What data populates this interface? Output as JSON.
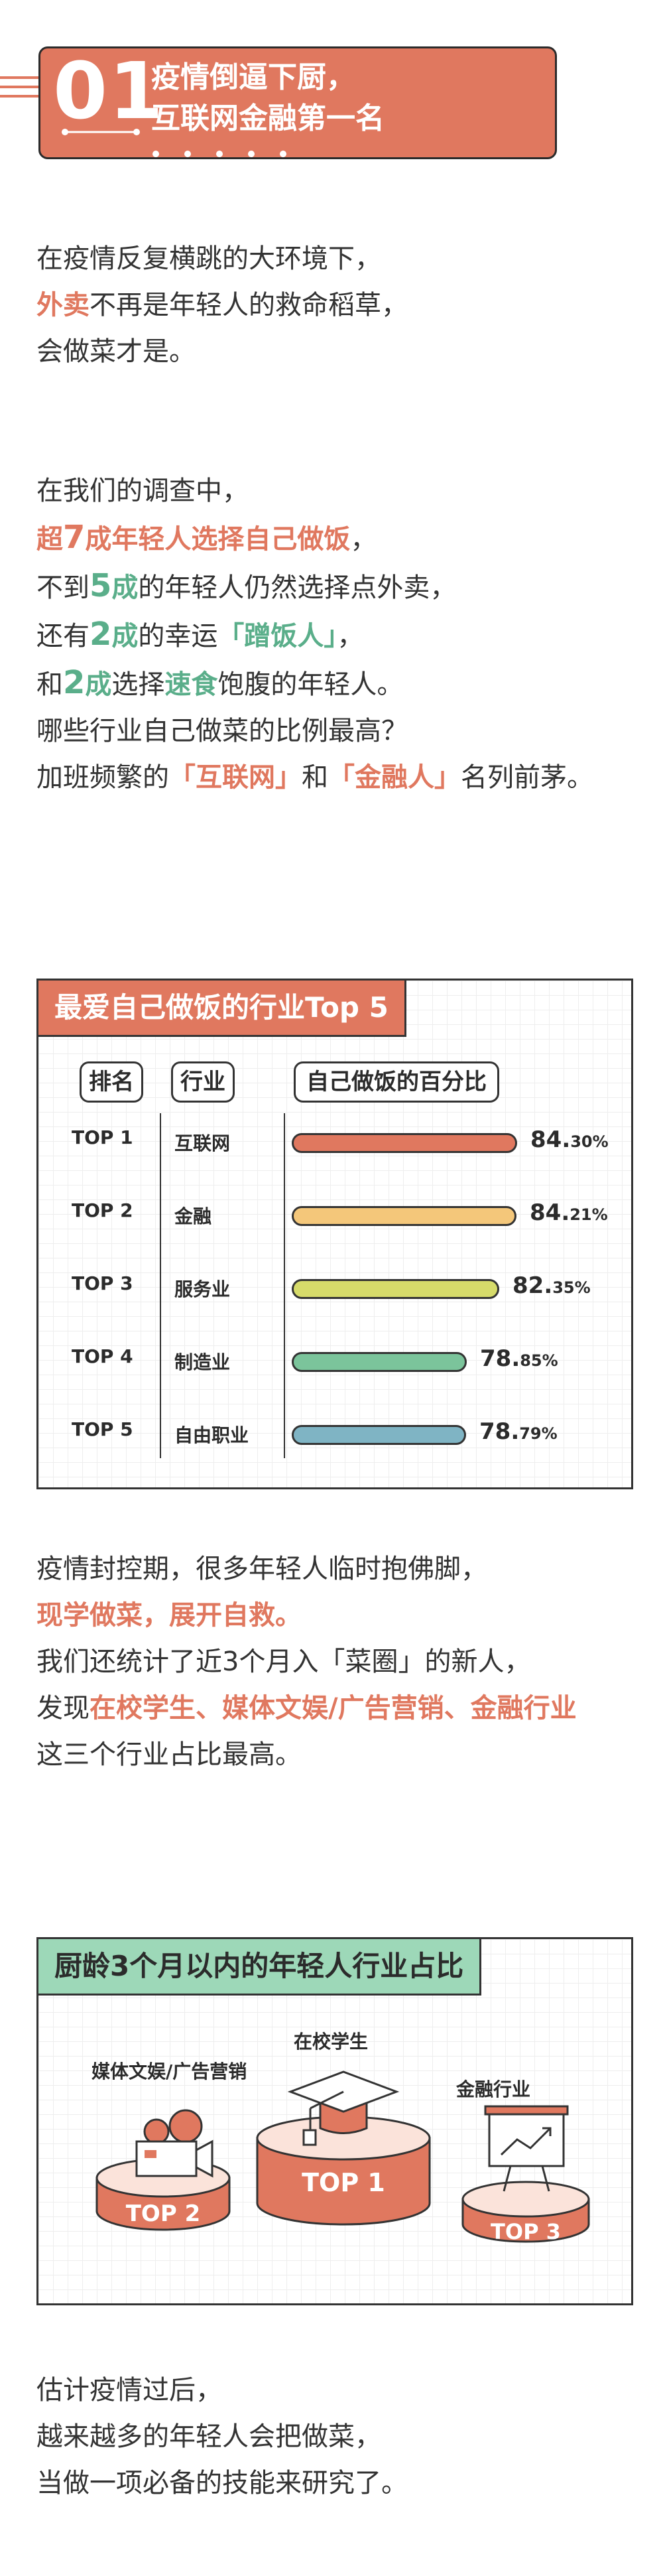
{
  "header": {
    "number": "01",
    "title_line1": "疫情倒逼下厨，",
    "title_line2": "互联网金融第一名"
  },
  "intro": {
    "line1": "在疫情反复横跳的大环境下，",
    "line2_hl": "外卖",
    "line2_rest": "不再是年轻人的救命稻草，",
    "line3": "会做菜才是。"
  },
  "survey": {
    "line1": "在我们的调查中，",
    "line2_pre": "超",
    "line2_num": "7",
    "line2_post": "成年轻人选择自己做饭",
    "line2_end": "，",
    "line3_pre": "不到",
    "line3_num": "5",
    "line3_unit": "成",
    "line3_post": "的年轻人仍然选择点外卖，",
    "line4_pre": "还有",
    "line4_num": "2",
    "line4_unit": "成",
    "line4_mid": "的幸运",
    "line4_hl": "「蹭饭人」",
    "line4_end": "，",
    "line5_pre": "和",
    "line5_num": "2",
    "line5_unit": "成",
    "line5_mid": "选择",
    "line5_hl": "速食",
    "line5_end": "饱腹的年轻人。",
    "line6": "哪些行业自己做菜的比例最高？",
    "line7_pre": "加班频繁的",
    "line7_hl1": "「互联网」",
    "line7_mid": "和",
    "line7_hl2": "「金融人」",
    "line7_end": "名列前茅。"
  },
  "chart_data": [
    {
      "type": "bar",
      "title": "最爱自己做饭的行业Top 5",
      "headers": [
        "排名",
        "行业",
        "自己做饭的百分比"
      ],
      "ranks": [
        "TOP 1",
        "TOP 2",
        "TOP 3",
        "TOP 4",
        "TOP 5"
      ],
      "categories": [
        "互联网",
        "金融",
        "服务业",
        "制造业",
        "自由职业"
      ],
      "values": [
        84.3,
        84.21,
        82.35,
        78.85,
        78.79
      ],
      "value_labels": [
        {
          "main": "84.",
          "small": "30%"
        },
        {
          "main": "84.",
          "small": "21%"
        },
        {
          "main": "82.",
          "small": "35%"
        },
        {
          "main": "78.",
          "small": "85%"
        },
        {
          "main": "78.",
          "small": "79%"
        }
      ],
      "colors": [
        "#E0785F",
        "#F4C77A",
        "#D6DB6A",
        "#7BC49B",
        "#7FB4C4"
      ]
    },
    {
      "type": "table",
      "title": "厨龄3个月以内的年轻人行业占比",
      "items": [
        {
          "rank": "TOP 1",
          "industry": "在校学生"
        },
        {
          "rank": "TOP 2",
          "industry": "媒体文娱/广告营销"
        },
        {
          "rank": "TOP 3",
          "industry": "金融行业"
        }
      ]
    }
  ],
  "lockdown": {
    "line1": "疫情封控期，很多年轻人临时抱佛脚，",
    "line2": "现学做菜，展开自救。",
    "line3": "我们还统计了近3个月入「菜圈」的新人，",
    "line4_pre": "发现",
    "line4_hl": "在校学生、媒体文娱/广告营销、金融行业",
    "line5": "这三个行业占比最高。"
  },
  "outro": {
    "line1": "估计疫情过后，",
    "line2": "越来越多的年轻人会把做菜，",
    "line3": "当做一项必备的技能来研究了。"
  },
  "colors": {
    "accent": "#E0785F",
    "green": "#5AAE8A",
    "mint": "#9DD8B8",
    "podium": "#E0785F"
  }
}
